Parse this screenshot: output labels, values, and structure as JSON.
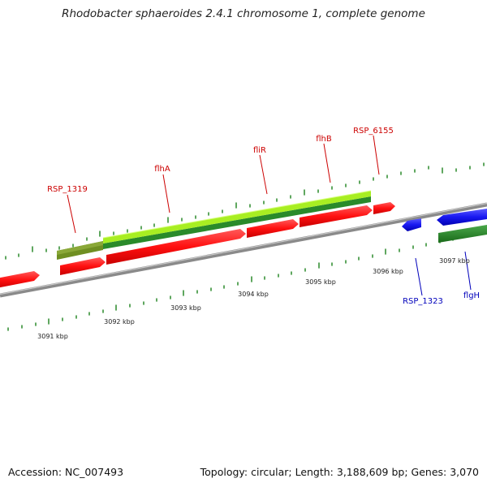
{
  "title": "Rhodobacter sphaeroides 2.4.1 chromosome 1, complete genome",
  "footer": {
    "accession": "Accession: NC_007493",
    "summary": "Topology: circular; Length: 3,188,609 bp; Genes: 3,070"
  },
  "colors": {
    "backbone": "#8a8a8a",
    "forward_genes": "#ff1a1a",
    "reverse_genes": "#1a1aee",
    "operon_light": "#a8ee22",
    "operon_dark": "#2a8a2a",
    "operon_olive": "#6f8f22",
    "label_forward": "#cc0000",
    "label_reverse": "#0000bb",
    "ticks": "#2a8a2a"
  },
  "scale": {
    "ticks": [
      "3091 kbp",
      "3092 kbp",
      "3093 kbp",
      "3094 kbp",
      "3095 kbp",
      "3096 kbp",
      "3097 kbp"
    ]
  },
  "genes": {
    "forward": [
      "RSP_1319",
      "flhA",
      "fliR",
      "flhB",
      "RSP_6155"
    ],
    "reverse": [
      "RSP_1323",
      "flgH"
    ]
  }
}
